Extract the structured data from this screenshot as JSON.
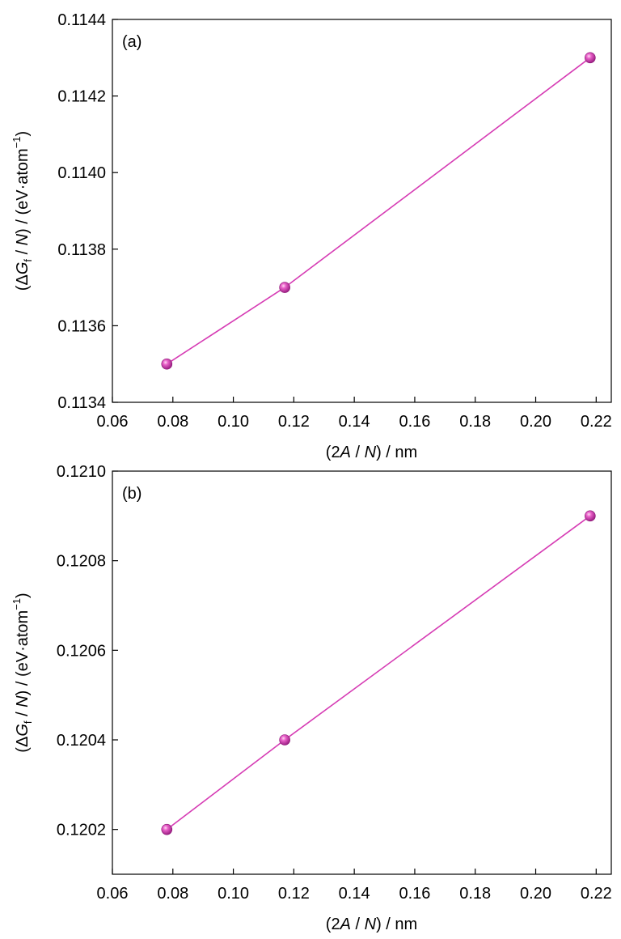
{
  "chart_data": [
    {
      "type": "scatter",
      "panel_label": "(a)",
      "xlabel": {
        "open": "(2",
        "italic1": "A",
        "mid": " / ",
        "italic2": "N",
        "close": ") / nm"
      },
      "ylabel": {
        "open": "(Δ",
        "italic1": "G",
        "sub": "f",
        "mid": " / ",
        "italic2": "N",
        "close": ") / (eV·atom",
        "sup": "−1",
        "end": ")"
      },
      "xlim": [
        0.06,
        0.225
      ],
      "ylim": [
        0.1134,
        0.1144
      ],
      "xticks": [
        "0.06",
        "0.08",
        "0.10",
        "0.12",
        "0.14",
        "0.16",
        "0.18",
        "0.20",
        "0.22"
      ],
      "yticks": [
        "0.1134",
        "0.1136",
        "0.1138",
        "0.1140",
        "0.1142",
        "0.1144"
      ],
      "series": [
        {
          "x": [
            0.078,
            0.117,
            0.218
          ],
          "y": [
            0.1135,
            0.1137,
            0.1143
          ],
          "fit_line": true
        }
      ],
      "color": "#d63cb4",
      "grid": false
    },
    {
      "type": "scatter",
      "panel_label": "(b)",
      "xlabel": {
        "open": "(2",
        "italic1": "A",
        "mid": " / ",
        "italic2": "N",
        "close": ") / nm"
      },
      "ylabel": {
        "open": "(Δ",
        "italic1": "G",
        "sub": "f",
        "mid": " / ",
        "italic2": "N",
        "close": ") / (eV·atom",
        "sup": "−1",
        "end": ")"
      },
      "xlim": [
        0.06,
        0.225
      ],
      "ylim": [
        0.1201,
        0.121
      ],
      "xticks": [
        "0.06",
        "0.08",
        "0.10",
        "0.12",
        "0.14",
        "0.16",
        "0.18",
        "0.20",
        "0.22"
      ],
      "yticks": [
        "0.1202",
        "0.1204",
        "0.1206",
        "0.1208",
        "0.1210"
      ],
      "series": [
        {
          "x": [
            0.078,
            0.117,
            0.218
          ],
          "y": [
            0.1202,
            0.1204,
            0.1209
          ],
          "fit_line": true
        }
      ],
      "color": "#d63cb4",
      "grid": false
    }
  ]
}
